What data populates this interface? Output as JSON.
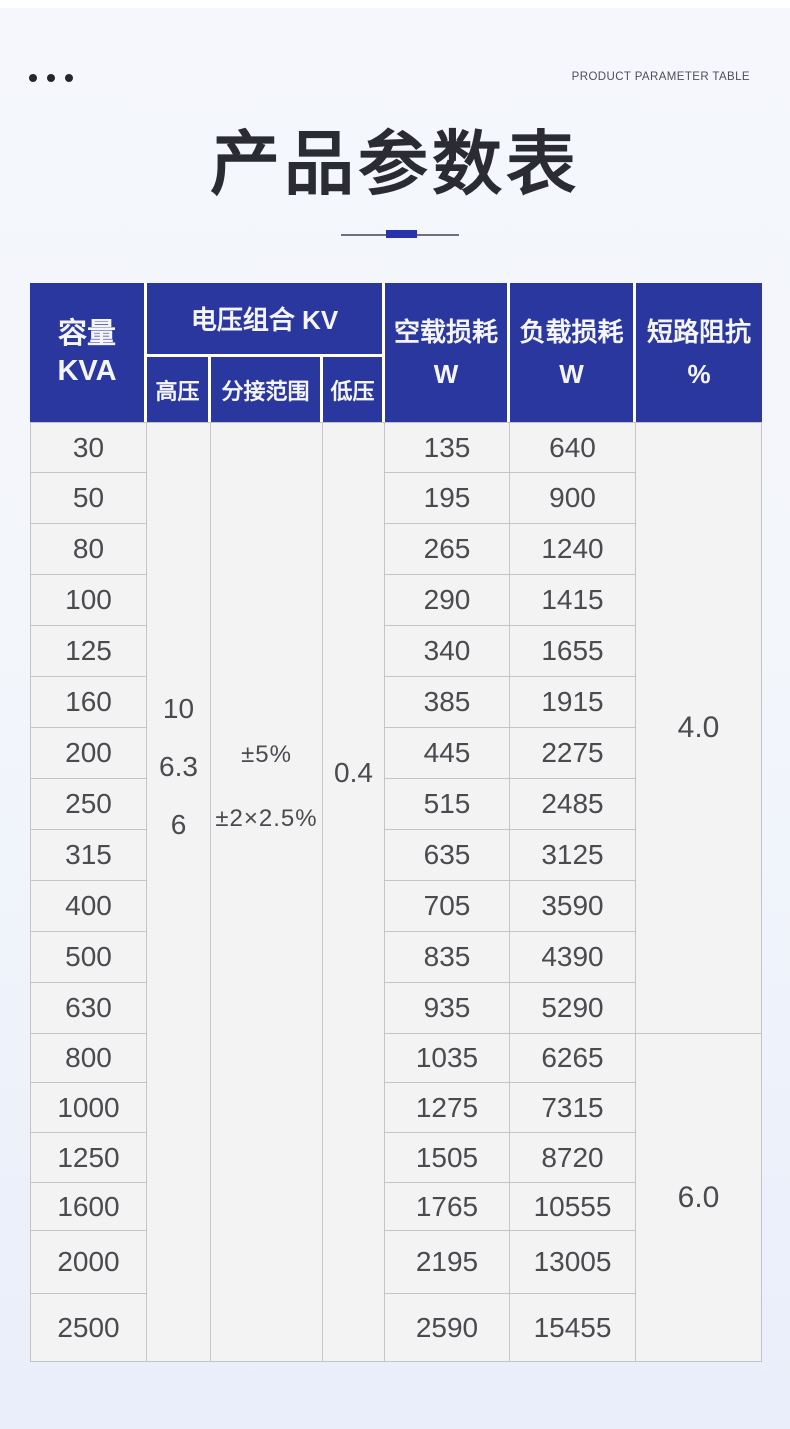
{
  "page": {
    "subtitle_en": "PRODUCT PARAMETER TABLE",
    "title": "产品参数表",
    "decor": {
      "dots_count": 3
    }
  },
  "colors": {
    "header_blue": "#2a379f",
    "accent_blue": "#2733ad",
    "cell_bg": "#f3f3f4",
    "border": "#c4c4c8",
    "title_dark": "#2b2b33"
  },
  "table": {
    "header": {
      "capacity": [
        "容量",
        "KVA"
      ],
      "voltage_group": "电压组合 KV",
      "sub": [
        "高压",
        "分接范围",
        "低压"
      ],
      "no_load_loss": [
        "空载损耗",
        "W"
      ],
      "load_loss": [
        "负载损耗",
        "W"
      ],
      "impedance": [
        "短路阻抗",
        "%"
      ]
    },
    "merged": {
      "high_voltage": [
        "10",
        "6.3",
        "6"
      ],
      "tap_range": [
        "±5%",
        "±2×2.5%"
      ],
      "low_voltage": "0.4",
      "impedance": [
        {
          "span_rows": 12,
          "value": "4.0"
        },
        {
          "span_rows": 6,
          "value": "6.0"
        }
      ]
    },
    "rows": [
      {
        "kva": "30",
        "no_load_w": "135",
        "load_w": "640"
      },
      {
        "kva": "50",
        "no_load_w": "195",
        "load_w": "900"
      },
      {
        "kva": "80",
        "no_load_w": "265",
        "load_w": "1240"
      },
      {
        "kva": "100",
        "no_load_w": "290",
        "load_w": "1415"
      },
      {
        "kva": "125",
        "no_load_w": "340",
        "load_w": "1655"
      },
      {
        "kva": "160",
        "no_load_w": "385",
        "load_w": "1915"
      },
      {
        "kva": "200",
        "no_load_w": "445",
        "load_w": "2275"
      },
      {
        "kva": "250",
        "no_load_w": "515",
        "load_w": "2485"
      },
      {
        "kva": "315",
        "no_load_w": "635",
        "load_w": "3125"
      },
      {
        "kva": "400",
        "no_load_w": "705",
        "load_w": "3590"
      },
      {
        "kva": "500",
        "no_load_w": "835",
        "load_w": "4390"
      },
      {
        "kva": "630",
        "no_load_w": "935",
        "load_w": "5290"
      },
      {
        "kva": "800",
        "no_load_w": "1035",
        "load_w": "6265"
      },
      {
        "kva": "1000",
        "no_load_w": "1275",
        "load_w": "7315"
      },
      {
        "kva": "1250",
        "no_load_w": "1505",
        "load_w": "8720"
      },
      {
        "kva": "1600",
        "no_load_w": "1765",
        "load_w": "10555"
      },
      {
        "kva": "2000",
        "no_load_w": "2195",
        "load_w": "13005"
      },
      {
        "kva": "2500",
        "no_load_w": "2590",
        "load_w": "15455"
      }
    ]
  }
}
